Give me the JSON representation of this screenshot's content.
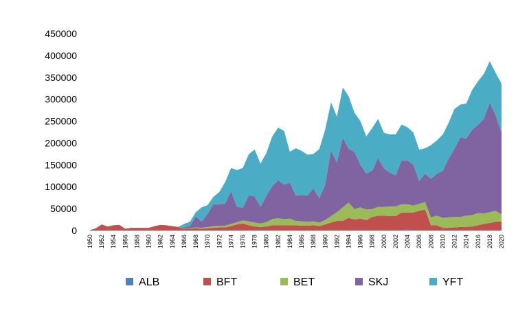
{
  "chart_data": {
    "type": "area",
    "stacked": true,
    "title": "",
    "xlabel": "",
    "ylabel": "",
    "ylim": [
      0,
      450000
    ],
    "yticks": [
      0,
      50000,
      100000,
      150000,
      200000,
      250000,
      300000,
      350000,
      400000,
      450000
    ],
    "ytick_labels": [
      "0",
      "50000",
      "100000",
      "150000",
      "200000",
      "250000",
      "300000",
      "350000",
      "400000",
      "450000"
    ],
    "x": [
      1950,
      1951,
      1952,
      1953,
      1954,
      1955,
      1956,
      1957,
      1958,
      1959,
      1960,
      1961,
      1962,
      1963,
      1964,
      1965,
      1966,
      1967,
      1968,
      1969,
      1970,
      1971,
      1972,
      1973,
      1974,
      1975,
      1976,
      1977,
      1978,
      1979,
      1980,
      1981,
      1982,
      1983,
      1984,
      1985,
      1986,
      1987,
      1988,
      1989,
      1990,
      1991,
      1992,
      1993,
      1994,
      1995,
      1996,
      1997,
      1998,
      1999,
      2000,
      2001,
      2002,
      2003,
      2004,
      2005,
      2006,
      2007,
      2008,
      2009,
      2010,
      2011,
      2012,
      2013,
      2014,
      2015,
      2016,
      2017,
      2018,
      2019,
      2020
    ],
    "xtick_labels": [
      "1950",
      "1952",
      "1954",
      "1956",
      "1958",
      "1960",
      "1962",
      "1964",
      "1966",
      "1968",
      "1970",
      "1972",
      "1974",
      "1976",
      "1978",
      "1980",
      "1982",
      "1984",
      "1986",
      "1988",
      "1990",
      "1992",
      "1994",
      "1996",
      "1998",
      "2000",
      "2002",
      "2004",
      "2006",
      "2008",
      "2010",
      "2012",
      "2014",
      "2016",
      "2018",
      "2020"
    ],
    "legend_position": "bottom",
    "grid": false,
    "series": [
      {
        "name": "ALB",
        "color": "#4f81bd",
        "values": [
          0,
          0,
          0,
          0,
          0,
          0,
          0,
          0,
          0,
          0,
          0,
          0,
          0,
          0,
          0,
          0,
          0,
          0,
          0,
          0,
          0,
          0,
          0,
          0,
          0,
          0,
          0,
          0,
          0,
          0,
          0,
          0,
          0,
          0,
          0,
          0,
          0,
          0,
          0,
          0,
          0,
          0,
          0,
          0,
          0,
          0,
          0,
          0,
          0,
          0,
          0,
          0,
          0,
          1000,
          2000,
          1000,
          1000,
          0,
          0,
          0,
          0,
          0,
          0,
          0,
          0,
          0,
          0,
          0,
          0,
          0,
          0
        ]
      },
      {
        "name": "BFT",
        "color": "#c0504d",
        "values": [
          1000,
          5000,
          14000,
          9000,
          12000,
          13000,
          4000,
          6000,
          6000,
          6000,
          6000,
          10000,
          13000,
          12000,
          10000,
          8000,
          4000,
          4000,
          5000,
          4000,
          5000,
          6000,
          7000,
          7000,
          10000,
          14000,
          16000,
          12000,
          9000,
          8000,
          9000,
          12000,
          12000,
          12000,
          12000,
          12000,
          11000,
          11000,
          12000,
          10000,
          14000,
          18000,
          22000,
          22000,
          29000,
          25000,
          27000,
          24000,
          31000,
          34000,
          34000,
          33000,
          33000,
          40000,
          39000,
          40000,
          44000,
          48000,
          12000,
          12000,
          6000,
          6000,
          7000,
          8000,
          8000,
          9000,
          12000,
          15000,
          17000,
          20000,
          21000
        ]
      },
      {
        "name": "BET",
        "color": "#9bbb59",
        "values": [
          0,
          0,
          0,
          0,
          0,
          0,
          0,
          0,
          0,
          0,
          0,
          0,
          0,
          0,
          0,
          0,
          1000,
          1000,
          2000,
          2000,
          3000,
          4000,
          4000,
          4000,
          5000,
          5000,
          7000,
          9000,
          9000,
          8000,
          10000,
          14000,
          16000,
          14000,
          15000,
          10000,
          10000,
          9000,
          9000,
          8000,
          10000,
          15000,
          20000,
          31000,
          35000,
          24000,
          26000,
          24000,
          18000,
          20000,
          20000,
          22000,
          22000,
          19000,
          19000,
          16000,
          16000,
          17000,
          18000,
          22000,
          23000,
          24000,
          24000,
          23000,
          26000,
          26000,
          28000,
          24000,
          25000,
          25000,
          16000
        ]
      },
      {
        "name": "SKJ",
        "color": "#8064a2",
        "values": [
          0,
          0,
          0,
          0,
          0,
          0,
          0,
          0,
          0,
          0,
          0,
          0,
          0,
          0,
          0,
          0,
          2000,
          5000,
          25000,
          14000,
          30000,
          50000,
          49000,
          51000,
          75000,
          35000,
          29000,
          59000,
          60000,
          38000,
          60000,
          75000,
          87000,
          79000,
          82000,
          58000,
          60000,
          60000,
          75000,
          56000,
          80000,
          150000,
          113000,
          159000,
          123000,
          130000,
          97000,
          82000,
          88000,
          111000,
          88000,
          77000,
          71000,
          99000,
          100000,
          93000,
          52000,
          65000,
          88000,
          96000,
          107000,
          134000,
          156000,
          182000,
          176000,
          195000,
          201000,
          216000,
          250000,
          218000,
          187000
        ]
      },
      {
        "name": "YFT",
        "color": "#4bacc6",
        "values": [
          0,
          0,
          0,
          0,
          0,
          0,
          0,
          0,
          0,
          0,
          0,
          0,
          0,
          0,
          0,
          0,
          8000,
          10000,
          10000,
          33000,
          20000,
          17000,
          28000,
          49000,
          53000,
          84000,
          91000,
          94000,
          107000,
          99000,
          98000,
          114000,
          120000,
          123000,
          71000,
          108000,
          101000,
          93000,
          79000,
          112000,
          126000,
          110000,
          105000,
          115000,
          120000,
          90000,
          100000,
          85000,
          97000,
          90000,
          81000,
          88000,
          94000,
          83000,
          76000,
          74000,
          72000,
          58000,
          77000,
          76000,
          83000,
          82000,
          91000,
          75000,
          80000,
          91000,
          100000,
          103000,
          95000,
          97000,
          112000
        ]
      }
    ]
  }
}
